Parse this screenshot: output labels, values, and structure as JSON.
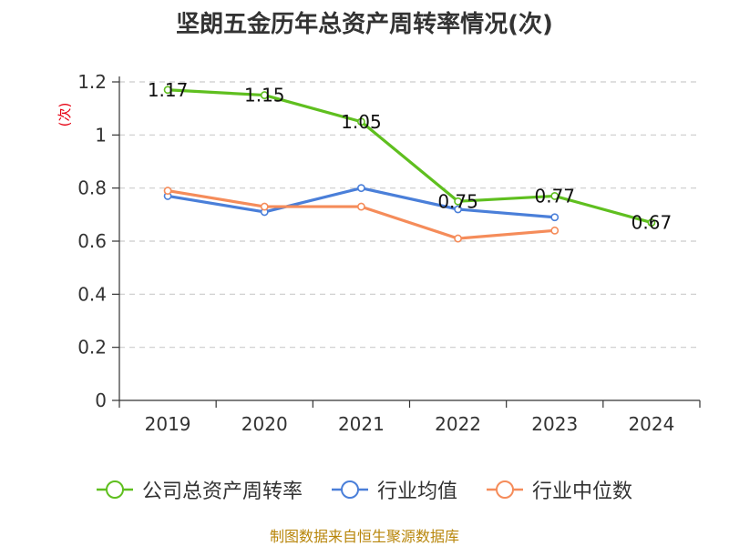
{
  "title": "坚朗五金历年总资产周转率情况(次)",
  "source": "制图数据来自恒生聚源数据库",
  "chart_data": {
    "type": "line",
    "title": "坚朗五金历年总资产周转率情况(次)",
    "ylabel": "(次)",
    "xlabel": "",
    "categories": [
      "2019",
      "2020",
      "2021",
      "2022",
      "2023",
      "2024"
    ],
    "ylim": [
      0,
      1.2
    ],
    "yticks": [
      "0",
      "0.2",
      "0.4",
      "0.6",
      "0.8",
      "1",
      "1.2"
    ],
    "grid": "horizontal dashed",
    "legend_position": "bottom",
    "series": [
      {
        "name": "公司总资产周转率",
        "color": "#5fbf1f",
        "values": [
          1.17,
          1.15,
          1.05,
          0.75,
          0.77,
          0.67
        ],
        "labels": [
          "1.17",
          "1.15",
          "1.05",
          "0.75",
          "0.77",
          "0.67"
        ]
      },
      {
        "name": "行业均值",
        "color": "#4a7fd9",
        "values": [
          0.77,
          0.71,
          0.8,
          0.72,
          0.69,
          null
        ]
      },
      {
        "name": "行业中位数",
        "color": "#f58c5a",
        "values": [
          0.79,
          0.73,
          0.73,
          0.61,
          0.64,
          null
        ]
      }
    ]
  }
}
